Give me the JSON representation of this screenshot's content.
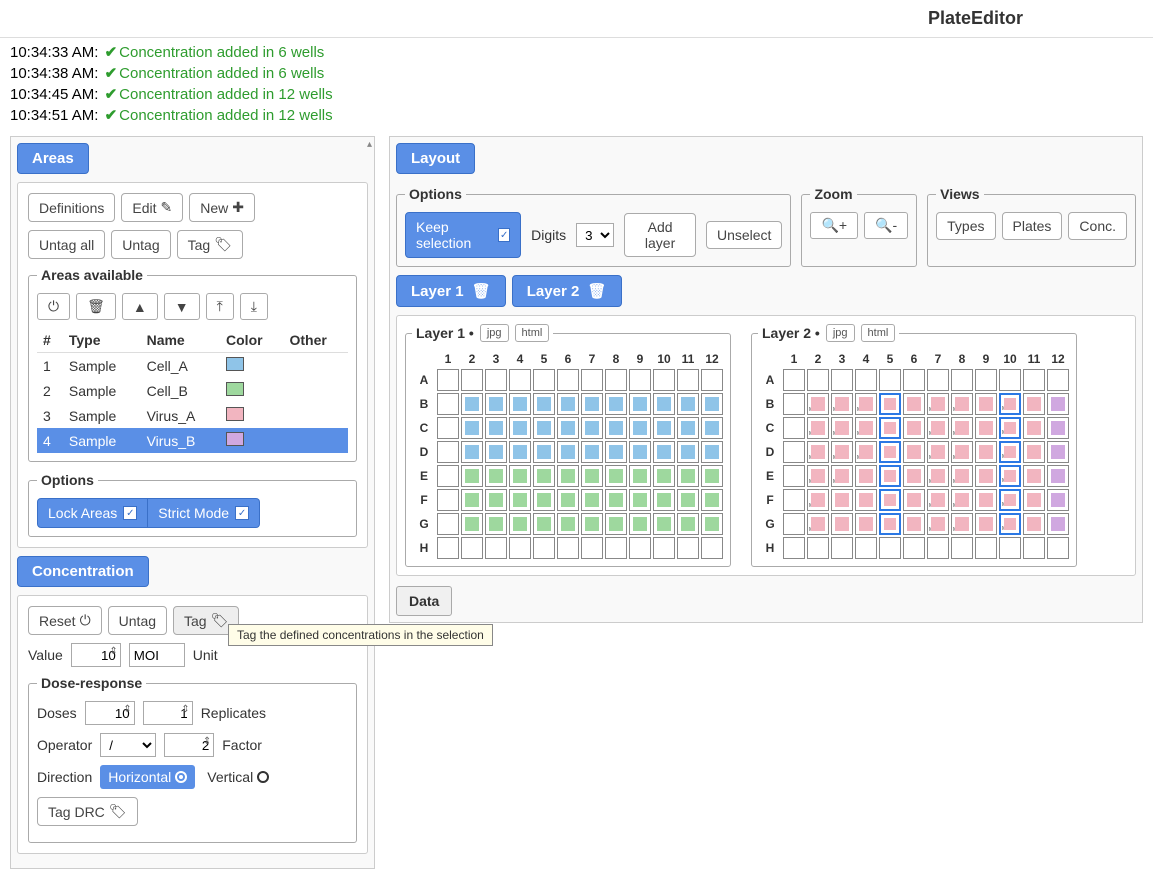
{
  "app": {
    "title": "PlateEditor"
  },
  "log": [
    {
      "time": "10:34:33 AM:",
      "msg": "Concentration added in 6 wells"
    },
    {
      "time": "10:34:38 AM:",
      "msg": "Concentration added in 6 wells"
    },
    {
      "time": "10:34:45 AM:",
      "msg": "Concentration added in 12 wells"
    },
    {
      "time": "10:34:51 AM:",
      "msg": "Concentration added in 12 wells"
    }
  ],
  "areas": {
    "header": "Areas",
    "buttons": {
      "definitions": "Definitions",
      "edit": "Edit",
      "new": "New",
      "untag_all": "Untag all",
      "untag": "Untag",
      "tag": "Tag"
    },
    "available_legend": "Areas available",
    "columns": {
      "num": "#",
      "type": "Type",
      "name": "Name",
      "color": "Color",
      "other": "Other"
    },
    "rows": [
      {
        "num": "1",
        "type": "Sample",
        "name": "Cell_A",
        "color": "#8fc4e8",
        "selected": false
      },
      {
        "num": "2",
        "type": "Sample",
        "name": "Cell_B",
        "color": "#9ed89e",
        "selected": false
      },
      {
        "num": "3",
        "type": "Sample",
        "name": "Virus_A",
        "color": "#f2b5c0",
        "selected": false
      },
      {
        "num": "4",
        "type": "Sample",
        "name": "Virus_B",
        "color": "#d0a8e0",
        "selected": true
      }
    ],
    "options_legend": "Options",
    "options": {
      "lock_areas": "Lock Areas",
      "strict_mode": "Strict Mode"
    }
  },
  "concentration": {
    "header": "Concentration",
    "buttons": {
      "reset": "Reset",
      "untag": "Untag",
      "tag": "Tag"
    },
    "tag_tooltip": "Tag the defined concentrations in the selection",
    "value_label": "Value",
    "value": "10",
    "unit_value": "MOI",
    "unit_label": "Unit",
    "dose_legend": "Dose-response",
    "doses_label": "Doses",
    "doses": "10",
    "replicates_label": "Replicates",
    "replicates": "1",
    "operator_label": "Operator",
    "operator_value": "/",
    "factor_label": "Factor",
    "factor": "2",
    "direction_label": "Direction",
    "direction_h": "Horizontal",
    "direction_v": "Vertical",
    "tag_drc": "Tag DRC"
  },
  "layout": {
    "header": "Layout",
    "options_legend": "Options",
    "keep_selection": "Keep selection",
    "digits_label": "Digits",
    "digits_value": "3",
    "add_layer": "Add layer",
    "unselect": "Unselect",
    "zoom_legend": "Zoom",
    "views_legend": "Views",
    "views": {
      "types": "Types",
      "plates": "Plates",
      "conc": "Conc."
    },
    "tabs": {
      "layer1": "Layer 1",
      "layer2": "Layer 2"
    },
    "layer1_title": "Layer 1 •",
    "layer2_title": "Layer 2 •",
    "export": {
      "jpg": "jpg",
      "html": "html"
    },
    "cols": [
      "1",
      "2",
      "3",
      "4",
      "5",
      "6",
      "7",
      "8",
      "9",
      "10",
      "11",
      "12"
    ],
    "rows": [
      "A",
      "B",
      "C",
      "D",
      "E",
      "F",
      "G",
      "H"
    ]
  },
  "plate_layer1": {
    "fill": {
      "B": [
        0,
        1,
        1,
        1,
        1,
        1,
        1,
        1,
        1,
        1,
        1,
        1
      ],
      "C": [
        0,
        1,
        1,
        1,
        1,
        1,
        1,
        1,
        1,
        1,
        1,
        1
      ],
      "D": [
        0,
        1,
        1,
        1,
        1,
        1,
        1,
        1,
        1,
        1,
        1,
        1
      ],
      "E": [
        0,
        2,
        2,
        2,
        2,
        2,
        2,
        2,
        2,
        2,
        2,
        2
      ],
      "F": [
        0,
        2,
        2,
        2,
        2,
        2,
        2,
        2,
        2,
        2,
        2,
        2
      ],
      "G": [
        0,
        2,
        2,
        2,
        2,
        2,
        2,
        2,
        2,
        2,
        2,
        2
      ]
    },
    "color_map": {
      "1": "c-blue",
      "2": "c-green"
    }
  },
  "plate_layer2": {
    "fill": {
      "B": [
        0,
        3,
        3,
        3,
        3,
        5,
        3,
        3,
        3,
        3,
        5,
        4
      ],
      "C": [
        0,
        3,
        3,
        3,
        3,
        5,
        3,
        3,
        3,
        3,
        5,
        4
      ],
      "D": [
        0,
        3,
        3,
        3,
        3,
        5,
        3,
        3,
        3,
        3,
        5,
        4
      ],
      "E": [
        0,
        3,
        3,
        3,
        3,
        5,
        3,
        3,
        3,
        3,
        5,
        4
      ],
      "F": [
        0,
        3,
        3,
        3,
        3,
        5,
        3,
        3,
        3,
        3,
        5,
        4
      ],
      "G": [
        0,
        3,
        3,
        3,
        3,
        5,
        3,
        3,
        3,
        3,
        5,
        4
      ]
    },
    "color_map": {
      "3": "c-pink",
      "4": "c-purple",
      "5": "c-pink"
    },
    "sel_cols": [
      5,
      10
    ],
    "labels": {
      "B": [
        "",
        "MOI 1",
        "MOI 2",
        "MOI 5",
        "",
        "",
        "MOI 1",
        "MOI 2",
        "",
        "MOI 5",
        "",
        ""
      ],
      "C": [
        "",
        "MOI 1",
        "MOI 2",
        "MOI 5",
        "",
        "",
        "MOI 1",
        "MOI 2",
        "",
        "MOI 5",
        "",
        ""
      ],
      "D": [
        "",
        "MOI 1",
        "MOI 2",
        "MOI 5",
        "",
        "",
        "MOI 1",
        "MOI 2",
        "",
        "MOI 5",
        "",
        ""
      ],
      "E": [
        "",
        "MOI 1",
        "MOI 2",
        "",
        "",
        "",
        "MOI 1",
        "MOI 2",
        "",
        "MOI 5",
        "",
        ""
      ],
      "F": [
        "",
        "MOI 1",
        "",
        "",
        "",
        "",
        "MOI 1",
        "MOI 2",
        "",
        "MOI 5",
        "",
        ""
      ],
      "G": [
        "",
        "MOI 1",
        "",
        "",
        "",
        "",
        "MOI 1",
        "MOI 2",
        "",
        "MOI 5",
        "",
        ""
      ]
    }
  },
  "data_button": "Data",
  "colors": {
    "primary": "#5a8fe6",
    "primary_border": "#3a70c8"
  }
}
